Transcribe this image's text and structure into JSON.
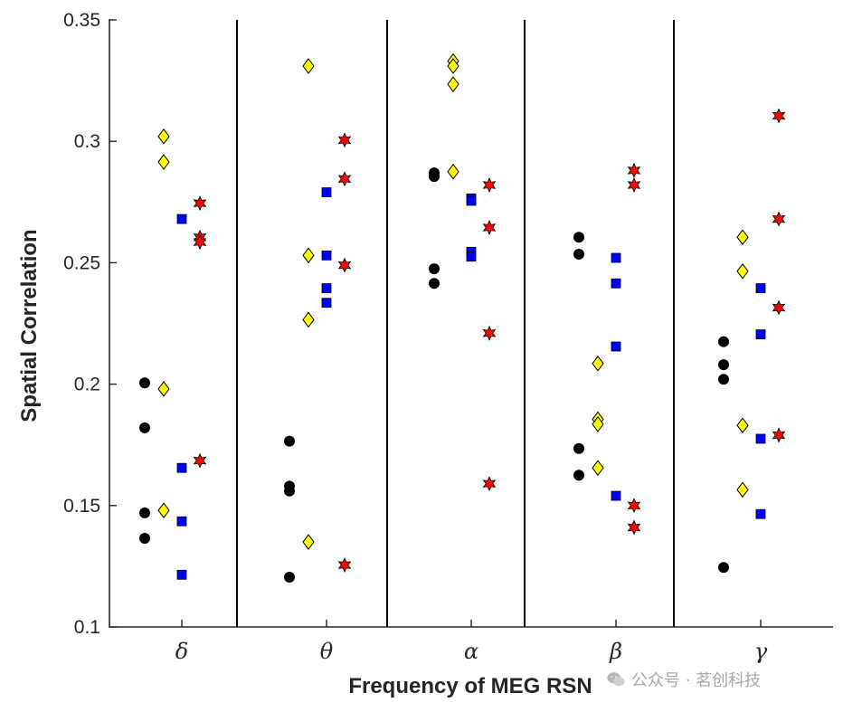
{
  "chart_data": {
    "type": "scatter",
    "xlabel": "Frequency of MEG RSN",
    "ylabel": "Spatial Correlation",
    "ylim": [
      0.1,
      0.35
    ],
    "yticks": [
      0.1,
      0.15,
      0.2,
      0.25,
      0.3,
      0.35
    ],
    "ytick_labels": [
      "0.1",
      "0.15",
      "0.2",
      "0.25",
      "0.3",
      "0.35"
    ],
    "categories": [
      "δ",
      "θ",
      "α",
      "β",
      "γ"
    ],
    "series": [
      {
        "name": "circle",
        "marker": "circle",
        "color": "#000000",
        "values": [
          [
            0.2005,
            0.182,
            0.147,
            0.1365
          ],
          [
            0.1765,
            0.158,
            0.156,
            0.1205
          ],
          [
            0.287,
            0.2855,
            0.2475,
            0.2415
          ],
          [
            0.2605,
            0.2535,
            0.1735,
            0.1625
          ],
          [
            0.2175,
            0.208,
            0.202,
            0.1245
          ]
        ]
      },
      {
        "name": "diamond",
        "marker": "diamond",
        "color": "#ffff00",
        "values": [
          [
            0.302,
            0.2915,
            0.198,
            0.148
          ],
          [
            0.331,
            0.253,
            0.2265,
            0.135
          ],
          [
            0.333,
            0.331,
            0.3235,
            0.2875
          ],
          [
            0.2085,
            0.1855,
            0.1835,
            0.1655
          ],
          [
            0.2605,
            0.2465,
            0.183,
            0.1565
          ]
        ]
      },
      {
        "name": "square",
        "marker": "square",
        "color": "#0000ff",
        "values": [
          [
            0.268,
            0.1655,
            0.1435,
            0.1215
          ],
          [
            0.279,
            0.253,
            0.2395,
            0.2335
          ],
          [
            0.2765,
            0.2755,
            0.2545,
            0.2525
          ],
          [
            0.252,
            0.2415,
            0.2155,
            0.154
          ],
          [
            0.2395,
            0.2205,
            0.1775,
            0.1465
          ]
        ]
      },
      {
        "name": "hexagram",
        "marker": "hexagram",
        "color": "#ff0000",
        "values": [
          [
            0.2745,
            0.2605,
            0.2585,
            0.1685
          ],
          [
            0.3005,
            0.2845,
            0.249,
            0.1255
          ],
          [
            0.282,
            0.2645,
            0.221,
            0.159
          ],
          [
            0.288,
            0.282,
            0.15,
            0.141
          ],
          [
            0.3105,
            0.268,
            0.2315,
            0.179
          ]
        ]
      }
    ],
    "legend": "none",
    "grid": false
  },
  "watermark": {
    "text": "公众号 · 茗创科技",
    "icon": "wechat-icon",
    "color": "#a9a9a9"
  }
}
